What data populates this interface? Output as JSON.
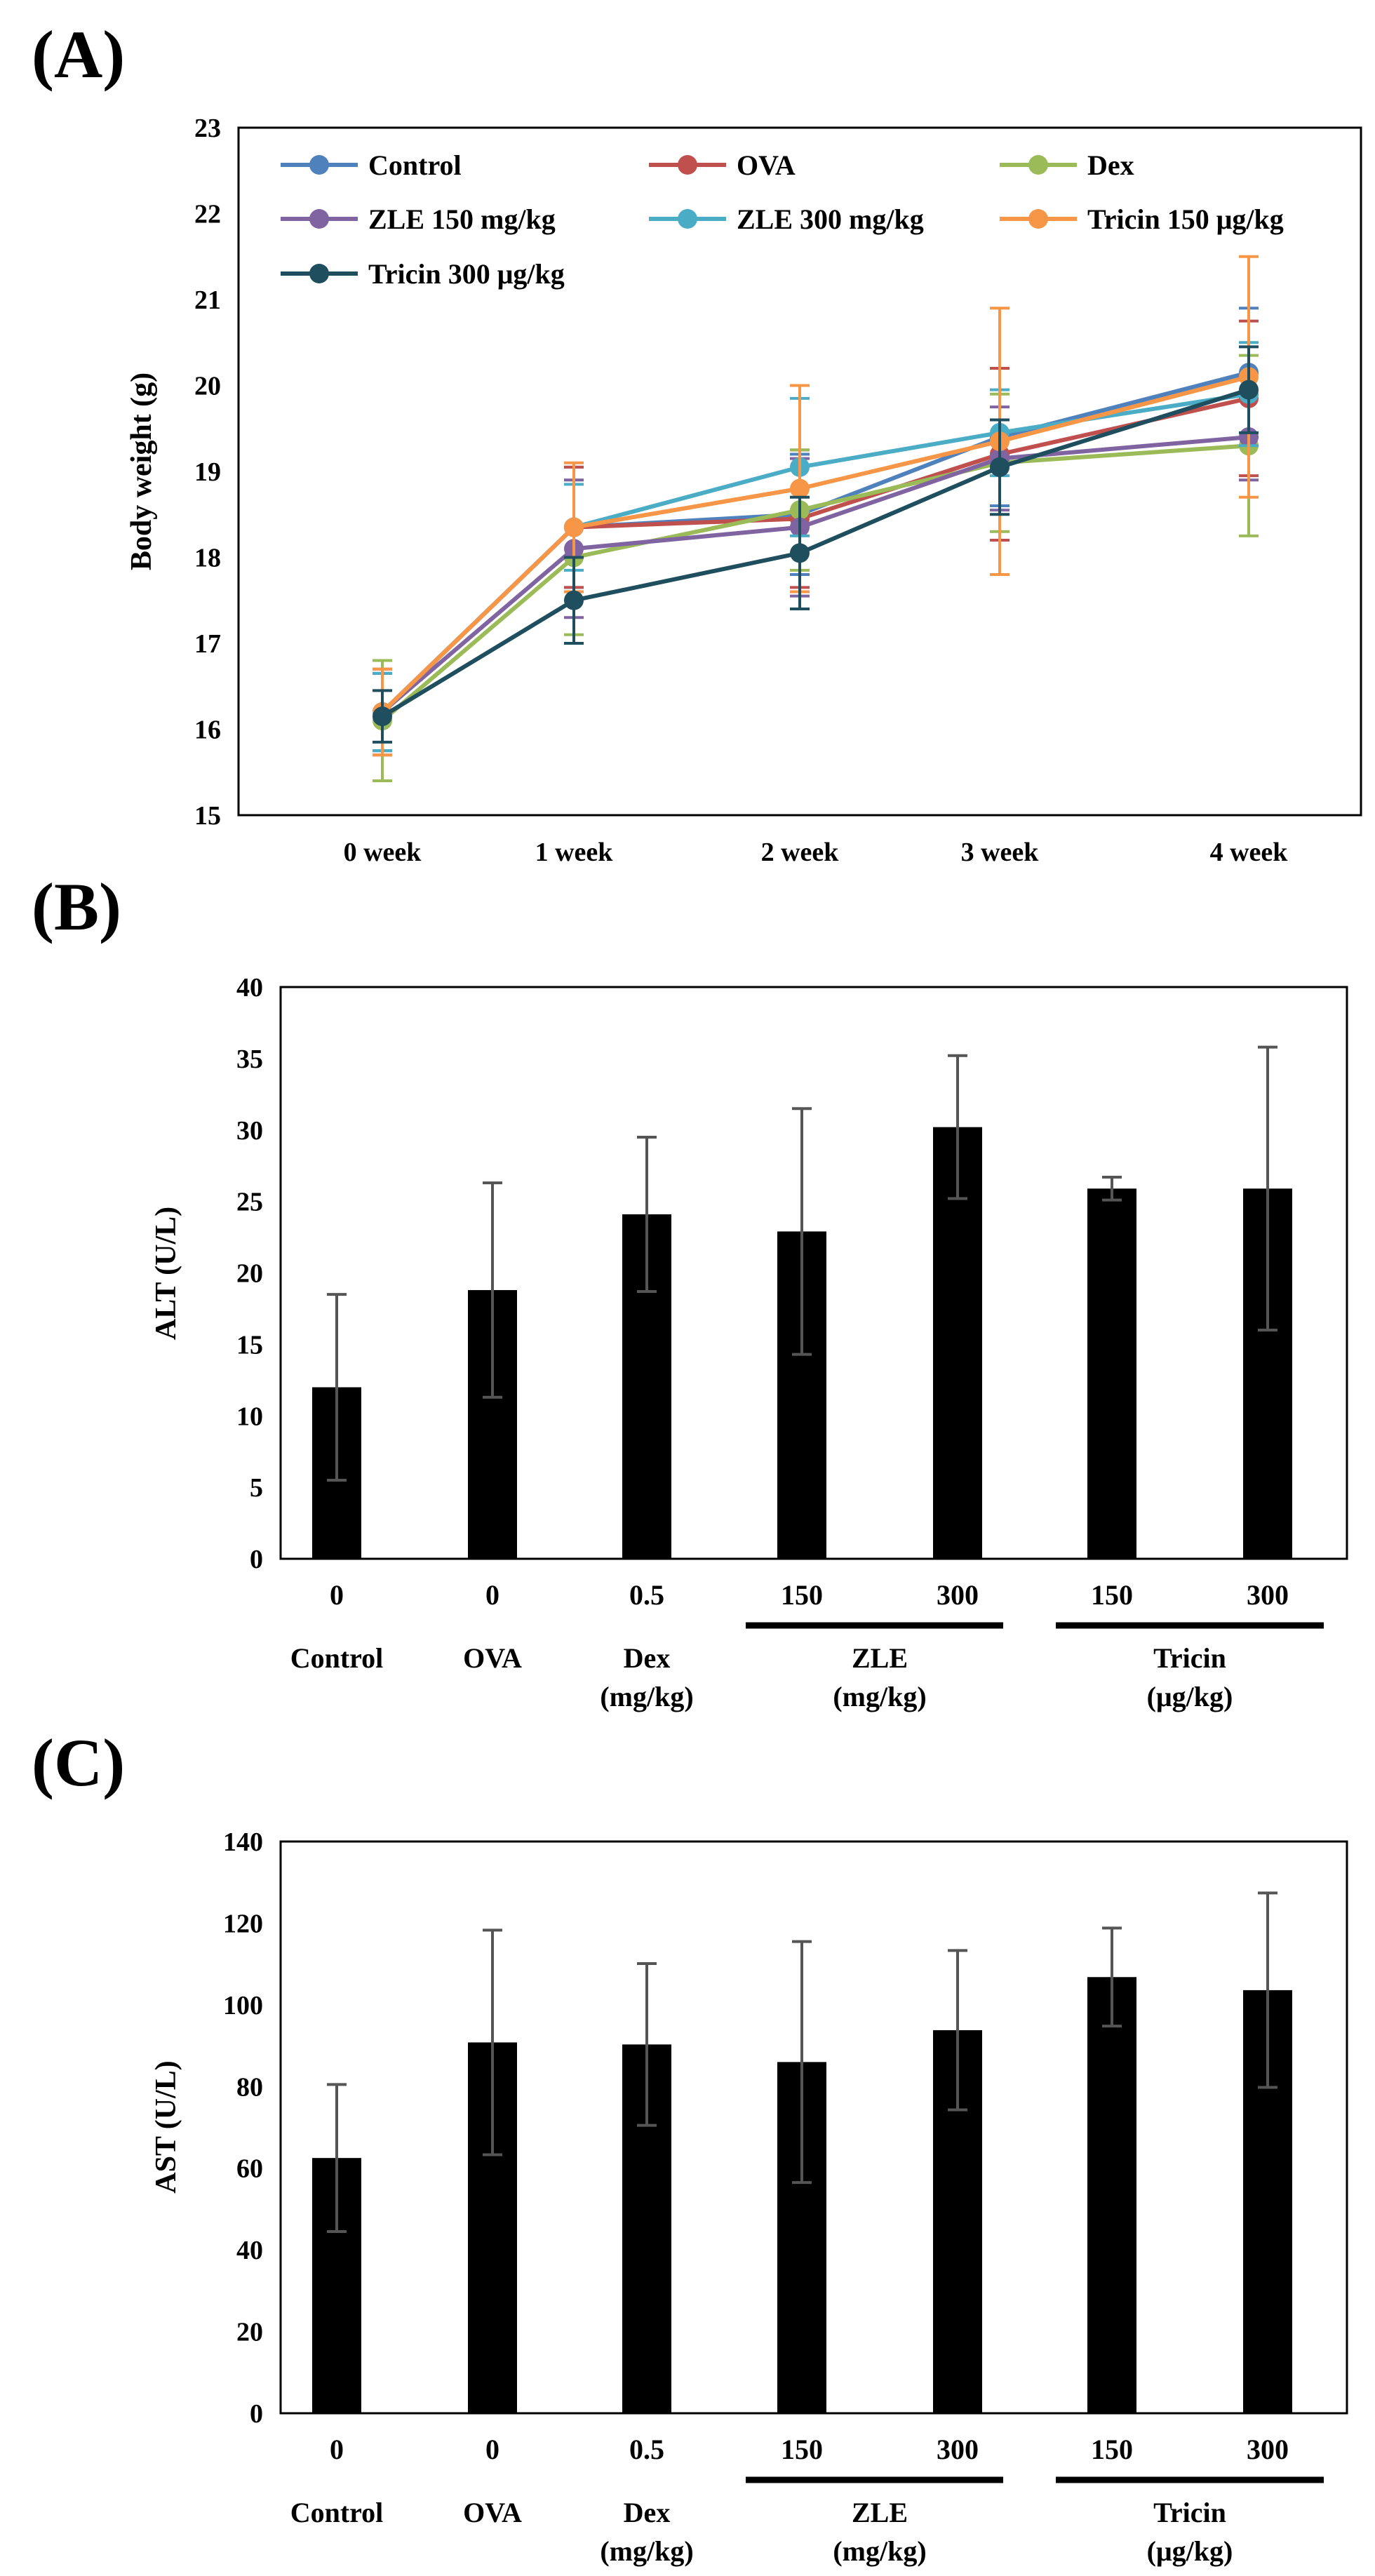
{
  "panels": {
    "a": "(A)",
    "b": "(B)",
    "c": "(C)"
  },
  "chart_data": [
    {
      "type": "line",
      "ylabel": "Body weight (g)",
      "ylim": [
        15,
        23
      ],
      "yticks": [
        15,
        16,
        17,
        18,
        19,
        20,
        21,
        22,
        23
      ],
      "categories": [
        "0 week",
        "1 week",
        "2 week",
        "3 week",
        "4 week"
      ],
      "legend_placement": "top, inside plot",
      "series": [
        {
          "name": "Control",
          "color": "#4F81BD",
          "values": [
            16.2,
            18.35,
            18.5,
            19.4,
            20.15
          ],
          "err": [
            0.45,
            0.7,
            0.7,
            0.8,
            0.75
          ]
        },
        {
          "name": "OVA",
          "color": "#C0504D",
          "values": [
            16.2,
            18.35,
            18.45,
            19.2,
            19.85
          ],
          "err": [
            0.5,
            0.7,
            0.8,
            1.0,
            0.9
          ]
        },
        {
          "name": "Dex",
          "color": "#9BBB59",
          "values": [
            16.1,
            18.0,
            18.55,
            19.1,
            19.3
          ],
          "err": [
            0.7,
            0.9,
            0.7,
            0.8,
            1.05
          ]
        },
        {
          "name": "ZLE 150 mg/kg",
          "color": "#8064A2",
          "values": [
            16.2,
            18.1,
            18.35,
            19.15,
            19.4
          ],
          "err": [
            0.45,
            0.8,
            0.8,
            0.6,
            0.5
          ]
        },
        {
          "name": "ZLE 300 mg/kg",
          "color": "#4BACC6",
          "values": [
            16.2,
            18.35,
            19.05,
            19.45,
            19.9
          ],
          "err": [
            0.45,
            0.5,
            0.8,
            0.5,
            0.6
          ]
        },
        {
          "name": "Tricin 150 μg/kg",
          "color": "#F79646",
          "values": [
            16.2,
            18.35,
            18.8,
            19.35,
            20.1
          ],
          "err": [
            0.5,
            0.75,
            1.2,
            1.55,
            1.4
          ]
        },
        {
          "name": "Tricin 300 μg/kg",
          "color": "#1F4E5F",
          "values": [
            16.15,
            17.5,
            18.05,
            19.05,
            19.95
          ],
          "err": [
            0.3,
            0.5,
            0.65,
            0.55,
            0.5
          ]
        }
      ]
    },
    {
      "type": "bar",
      "ylabel": "ALT (U/L)",
      "ylim": [
        0,
        40
      ],
      "yticks": [
        0,
        5,
        10,
        15,
        20,
        25,
        30,
        35,
        40
      ],
      "categories": [
        "0",
        "0",
        "0.5",
        "150",
        "300",
        "150",
        "300"
      ],
      "values": [
        12.0,
        18.8,
        24.1,
        22.9,
        30.2,
        25.9,
        25.9
      ],
      "err": [
        6.5,
        7.5,
        5.4,
        8.6,
        5.0,
        0.8,
        9.9
      ],
      "color": "#000000",
      "groups": [
        {
          "line1": "Control",
          "line2": ""
        },
        {
          "line1": "OVA",
          "line2": ""
        },
        {
          "line1": "Dex",
          "line2": "(mg/kg)"
        },
        {
          "line1": "ZLE",
          "line2": "(mg/kg)"
        },
        {
          "line1": "Tricin",
          "line2": "(μg/kg)"
        }
      ]
    },
    {
      "type": "bar",
      "ylabel": "AST (U/L)",
      "ylim": [
        0,
        140
      ],
      "yticks": [
        0,
        20,
        40,
        60,
        80,
        100,
        120,
        140
      ],
      "categories": [
        "0",
        "0",
        "0.5",
        "150",
        "300",
        "150",
        "300"
      ],
      "values": [
        62.5,
        90.8,
        90.3,
        86.0,
        93.8,
        106.8,
        103.6
      ],
      "err": [
        18.0,
        27.5,
        19.8,
        29.5,
        19.5,
        12.0,
        23.8
      ],
      "color": "#000000",
      "groups": [
        {
          "line1": "Control",
          "line2": ""
        },
        {
          "line1": "OVA",
          "line2": ""
        },
        {
          "line1": "Dex",
          "line2": "(mg/kg)"
        },
        {
          "line1": "ZLE",
          "line2": "(mg/kg)"
        },
        {
          "line1": "Tricin",
          "line2": "(μg/kg)"
        }
      ]
    }
  ]
}
